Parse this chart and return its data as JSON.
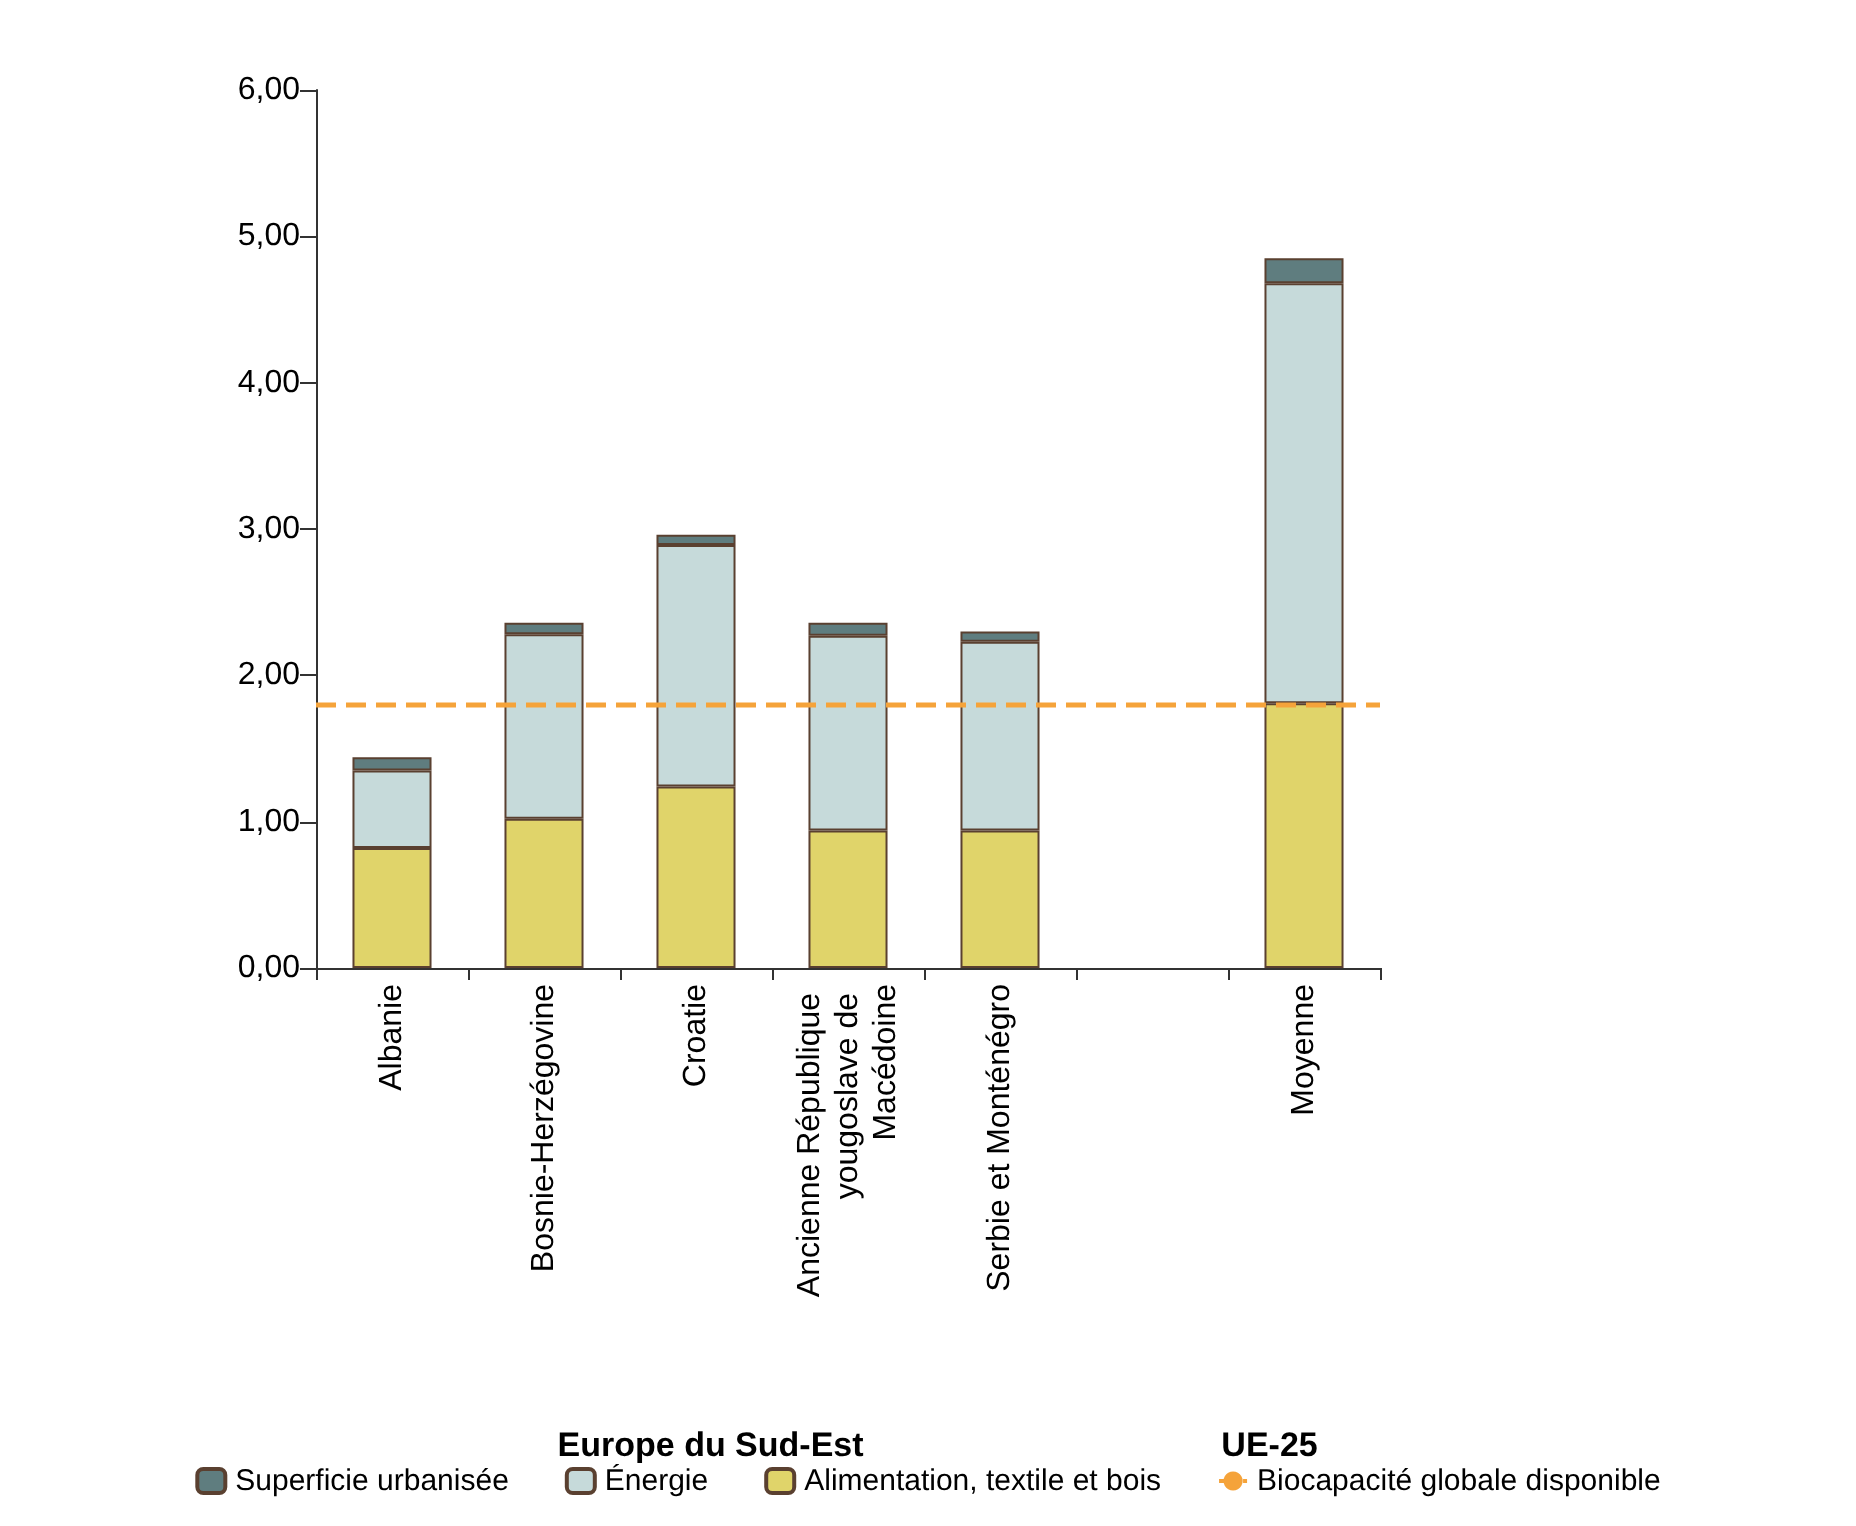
{
  "chart_data": {
    "type": "bar",
    "stacked": true,
    "categories": [
      "Albanie",
      "Bosnie-Herzégovine",
      "Croatie",
      "Ancienne République yougoslave de Macédoine",
      "Serbie et Monténégro",
      null,
      "Moyenne"
    ],
    "series": [
      {
        "name": "Alimentation, textile et bois",
        "color": "#e0d46a",
        "values": [
          0.82,
          1.02,
          1.24,
          0.94,
          0.94,
          null,
          1.81
        ]
      },
      {
        "name": "Énergie",
        "color": "#c6dada",
        "values": [
          0.53,
          1.26,
          1.65,
          1.33,
          1.29,
          null,
          2.87
        ]
      },
      {
        "name": "Superficie urbanisée",
        "color": "#5f7d7f",
        "values": [
          0.09,
          0.08,
          0.07,
          0.09,
          0.07,
          null,
          0.17
        ]
      }
    ],
    "ylim": [
      0,
      6
    ],
    "yticks": [
      {
        "value": 0,
        "label": "0,00"
      },
      {
        "value": 1,
        "label": "1,00"
      },
      {
        "value": 2,
        "label": "2,00"
      },
      {
        "value": 3,
        "label": "3,00"
      },
      {
        "value": 4,
        "label": "4,00"
      },
      {
        "value": 5,
        "label": "5,00"
      },
      {
        "value": 6,
        "label": "6,00"
      }
    ],
    "ref_lines": [
      {
        "axis": "y",
        "value": 1.8,
        "label": "Biocapacité globale disponible",
        "color": "#f5a33a",
        "line_style": "dashed"
      }
    ],
    "annotations": [
      "Europe du Sud-Est",
      "UE-25"
    ],
    "legend": "bottom",
    "grid": false
  }
}
